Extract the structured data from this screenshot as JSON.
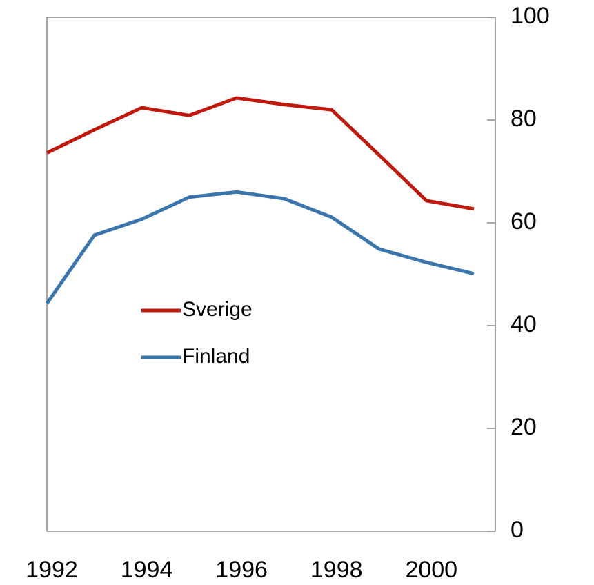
{
  "chart_data": {
    "type": "line",
    "x": [
      1992,
      1993,
      1994,
      1995,
      1996,
      1997,
      1998,
      1999,
      2000,
      2001
    ],
    "series": [
      {
        "name": "Sverige",
        "color": "#c0180c",
        "values": [
          73.6,
          78.1,
          82.4,
          80.9,
          84.3,
          83.0,
          82.0,
          73.2,
          64.3,
          62.7
        ]
      },
      {
        "name": "Finland",
        "color": "#3a75ad",
        "values": [
          44.3,
          57.6,
          60.7,
          65.0,
          66.0,
          64.7,
          61.1,
          54.9,
          52.3,
          50.1
        ]
      }
    ],
    "xlim": [
      1992,
      2001.45
    ],
    "xticks": [
      1992,
      1994,
      1996,
      1998,
      2000
    ],
    "ylim": [
      0,
      100
    ],
    "yticks": [
      0,
      20,
      40,
      60,
      80,
      100
    ],
    "grid": false,
    "legend": "center-left"
  }
}
